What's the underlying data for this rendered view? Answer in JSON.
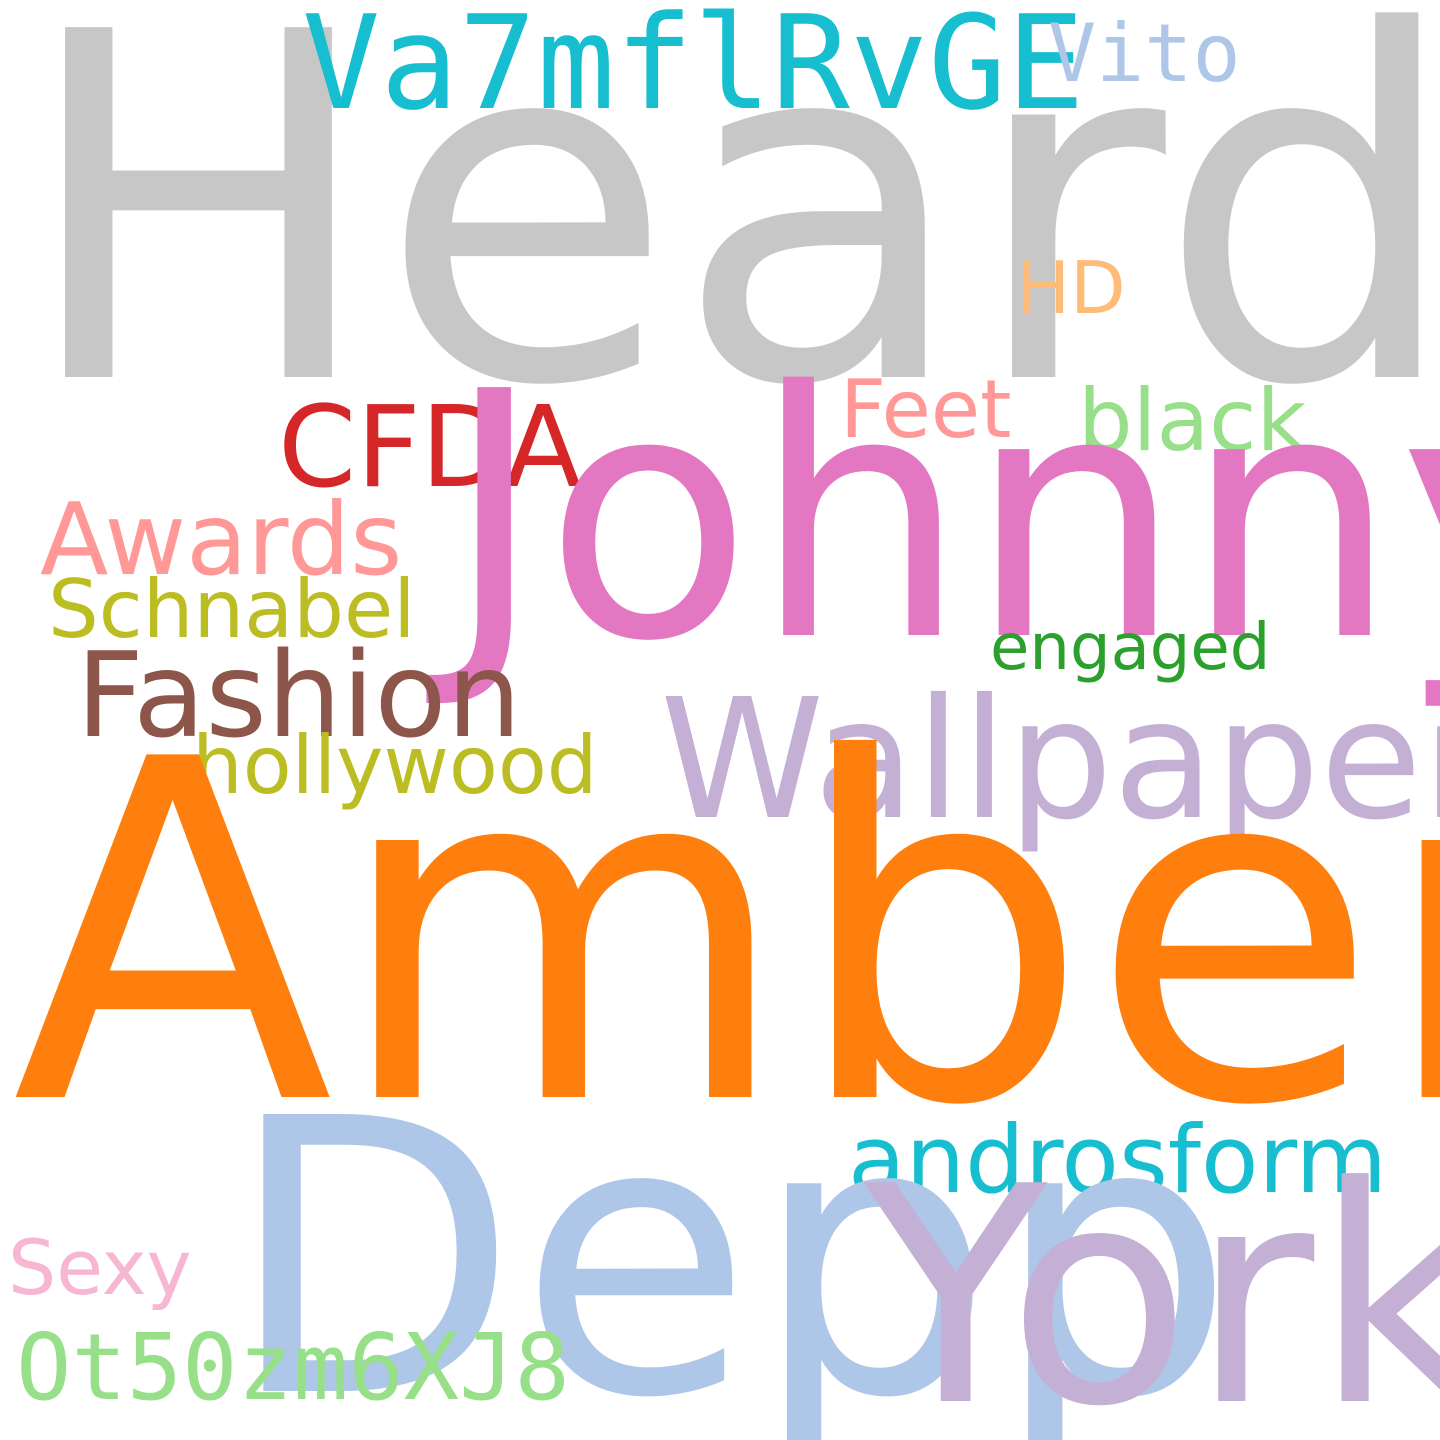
{
  "words": {
    "heard": {
      "text": "Heard",
      "color": "#c7c7c7"
    },
    "va7": {
      "text": "Va7mflRvGE",
      "color": "#17becf"
    },
    "vito": {
      "text": "Vito",
      "color": "#aec7e8"
    },
    "hd": {
      "text": "HD",
      "color": "#ffbb78"
    },
    "feet": {
      "text": "Feet",
      "color": "#ff9896"
    },
    "black": {
      "text": "black",
      "color": "#98df8a"
    },
    "cfda": {
      "text": "CFDA",
      "color": "#d62728"
    },
    "johnny": {
      "text": "Johnny",
      "color": "#e377c2"
    },
    "awards": {
      "text": "Awards",
      "color": "#ff9896"
    },
    "schnabel": {
      "text": "Schnabel",
      "color": "#bcbd22"
    },
    "engaged": {
      "text": "engaged",
      "color": "#2ca02c"
    },
    "fashion": {
      "text": "Fashion",
      "color": "#8c564b"
    },
    "wallpaper": {
      "text": "Wallpaper",
      "color": "#c5b0d5"
    },
    "hollywood": {
      "text": "hollywood",
      "color": "#bcbd22"
    },
    "amber": {
      "text": "Amber",
      "color": "#ff7f0e"
    },
    "androsform": {
      "text": "androsform",
      "color": "#17becf"
    },
    "depp": {
      "text": "Depp",
      "color": "#aec7e8"
    },
    "york": {
      "text": "York",
      "color": "#c5b0d5"
    },
    "sexy": {
      "text": "Sexy",
      "color": "#f7b6d2"
    },
    "ot50": {
      "text": "Ot50zm6XJ8",
      "color": "#98df8a"
    }
  }
}
